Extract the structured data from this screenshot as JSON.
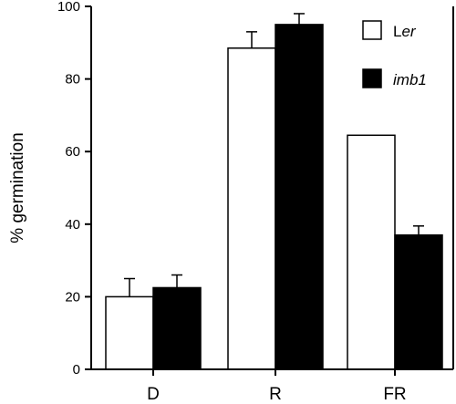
{
  "chart_data": {
    "type": "bar",
    "title": "",
    "xlabel": "",
    "ylabel": "% germination",
    "ylim": [
      0,
      100
    ],
    "yticks": [
      0,
      20,
      40,
      60,
      80,
      100
    ],
    "grid": false,
    "legend_position": "top-right",
    "categories": [
      "D",
      "R",
      "FR"
    ],
    "series": [
      {
        "name": "Ler",
        "name_prefix": "L",
        "name_suffix": "er",
        "fill": "#ffffff",
        "values": [
          20,
          88.5,
          64.5
        ],
        "error_upper": [
          5,
          4.5,
          0
        ]
      },
      {
        "name": "imb1",
        "fill": "#000000",
        "values": [
          22.5,
          95,
          37
        ],
        "error_upper": [
          3.5,
          3,
          2.5
        ]
      }
    ]
  }
}
